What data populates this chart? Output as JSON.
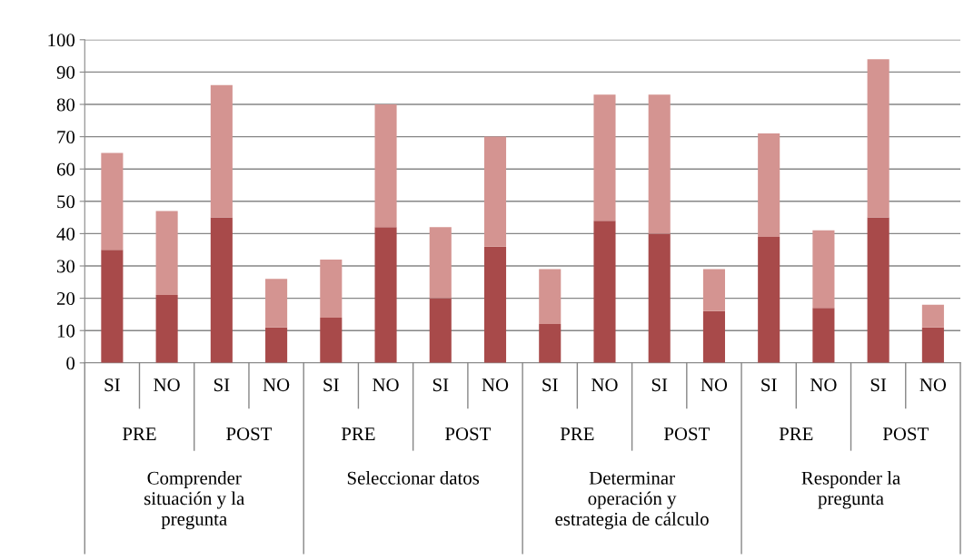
{
  "chart_data": {
    "type": "bar",
    "stacked": true,
    "categories": [
      "SI",
      "NO",
      "SI",
      "NO",
      "SI",
      "NO",
      "SI",
      "NO",
      "SI",
      "NO",
      "SI",
      "NO",
      "SI",
      "NO",
      "SI",
      "NO"
    ],
    "series": [
      {
        "color": "#a84a4a",
        "values": [
          35,
          21,
          45,
          11,
          14,
          42,
          20,
          36,
          12,
          44,
          40,
          16,
          39,
          17,
          45,
          11
        ]
      },
      {
        "color": "#d49491",
        "values": [
          30,
          26,
          41,
          15,
          18,
          38,
          22,
          34,
          17,
          39,
          43,
          13,
          32,
          24,
          49,
          7
        ]
      }
    ],
    "ylim": [
      0,
      100
    ],
    "yticks": [
      0,
      10,
      20,
      30,
      40,
      50,
      60,
      70,
      80,
      90,
      100
    ],
    "grid": "y",
    "legend": false,
    "annotations": [
      "PRE",
      "POST",
      "PRE",
      "POST",
      "PRE",
      "POST",
      "PRE",
      "POST",
      "Comprender\nsituación y la\npregunta",
      "Seleccionar datos",
      "Determinar\noperación y\nestrategia de cálculo",
      "Responder la\npregunta"
    ]
  }
}
